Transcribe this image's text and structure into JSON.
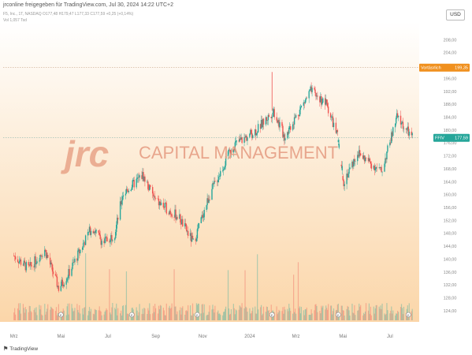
{
  "header": {
    "published_by": "jrconline freigegeben für TradingView.com, Jul 30, 2024 14:22 UTC+2",
    "ohlc": "F5, Inc., 1T, NASDAQ  O177,48  H179,47  L177,33  C177,59  +0,25 (+0,14%)",
    "volume": "Vol  1,057 Tsd"
  },
  "currency": "USD",
  "watermark": {
    "logo": "jrc",
    "text": "CAPITAL MANAGEMENT"
  },
  "footer": {
    "brand": "TradingView"
  },
  "colors": {
    "up": "#26a69a",
    "down": "#ef5350",
    "price_label": "#26a69a",
    "prev_close_label": "#f0901e",
    "watermark": "#e9967a"
  },
  "price_labels": {
    "current": {
      "ticker": "FFIV",
      "value": "177,59",
      "price": 177.59
    },
    "previous_close": {
      "label": "Vortäsrlich",
      "value": "199,35",
      "price": 199.35
    }
  },
  "chart_data": {
    "type": "candlestick",
    "title": "",
    "ylim": [
      122,
      212
    ],
    "y_ticks": [
      "208,00",
      "204,00",
      "200,00",
      "196,00",
      "192,00",
      "188,00",
      "184,00",
      "180,00",
      "176,00",
      "172,00",
      "168,00",
      "164,00",
      "160,00",
      "156,00",
      "152,00",
      "148,00",
      "144,00",
      "140,00",
      "136,00",
      "132,00",
      "128,00",
      "124,00"
    ],
    "x_ticks": [
      "Mrz",
      "Mai",
      "Jul",
      "Sep",
      "Nov",
      "2024",
      "Mrz",
      "Mai",
      "Jul"
    ],
    "key_points": [
      {
        "date": "2023-03-01",
        "close": 141
      },
      {
        "date": "2023-03-20",
        "close": 137
      },
      {
        "date": "2023-04-10",
        "close": 143
      },
      {
        "date": "2023-04-28",
        "close": 131
      },
      {
        "date": "2023-05-10",
        "close": 135
      },
      {
        "date": "2023-06-10",
        "close": 150
      },
      {
        "date": "2023-06-25",
        "close": 145
      },
      {
        "date": "2023-07-10",
        "close": 148
      },
      {
        "date": "2023-07-20",
        "close": 160
      },
      {
        "date": "2023-08-15",
        "close": 166
      },
      {
        "date": "2023-09-01",
        "close": 158
      },
      {
        "date": "2023-10-01",
        "close": 153
      },
      {
        "date": "2023-10-20",
        "close": 145
      },
      {
        "date": "2023-11-10",
        "close": 160
      },
      {
        "date": "2023-12-10",
        "close": 175
      },
      {
        "date": "2024-01-10",
        "close": 180
      },
      {
        "date": "2024-02-01",
        "close": 186
      },
      {
        "date": "2024-02-15",
        "close": 178
      },
      {
        "date": "2024-03-20",
        "close": 192
      },
      {
        "date": "2024-04-10",
        "close": 188
      },
      {
        "date": "2024-04-24",
        "close": 178
      },
      {
        "date": "2024-05-02",
        "close": 164
      },
      {
        "date": "2024-05-20",
        "close": 173
      },
      {
        "date": "2024-06-20",
        "close": 167
      },
      {
        "date": "2024-07-10",
        "close": 184
      },
      {
        "date": "2024-07-30",
        "close": 177.59
      }
    ],
    "previous_close": 199.35,
    "last": 177.59,
    "high_spike": {
      "date": "2024-01-30",
      "price": 198
    },
    "event_markers": [
      "2023-05-01",
      "2023-08-01",
      "2023-10-25",
      "2024-01-30",
      "2024-04-25",
      "2024-07-25"
    ]
  }
}
